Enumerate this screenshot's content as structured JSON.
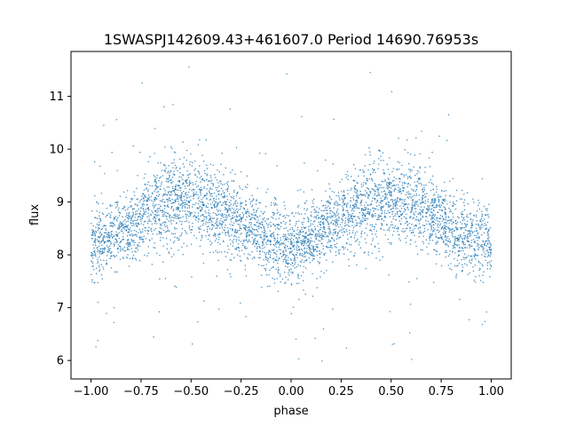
{
  "chart_data": {
    "type": "scatter",
    "title": "1SWASPJ142609.43+461607.0 Period 14690.76953s",
    "xlabel": "phase",
    "ylabel": "flux",
    "xlim": [
      -1.1,
      1.1
    ],
    "ylim": [
      5.65,
      11.85
    ],
    "x_ticks": [
      -1.0,
      -0.75,
      -0.5,
      -0.25,
      0.0,
      0.25,
      0.5,
      0.75,
      1.0
    ],
    "x_tick_labels": [
      "−1.00",
      "−0.75",
      "−0.50",
      "−0.25",
      "0.00",
      "0.25",
      "0.50",
      "0.75",
      "1.00"
    ],
    "y_ticks": [
      6,
      7,
      8,
      9,
      10,
      11
    ],
    "y_tick_labels": [
      "6",
      "7",
      "8",
      "9",
      "10",
      "11"
    ],
    "grid": false,
    "legend": "none",
    "point_color": "#1f77b4",
    "series": [
      {
        "x": [
          -1.0,
          -0.9,
          -0.8,
          -0.7,
          -0.6,
          -0.5,
          -0.4,
          -0.3,
          -0.2,
          -0.1,
          0.0,
          0.1,
          0.2,
          0.3,
          0.4,
          0.5,
          0.6,
          0.7,
          0.8,
          0.9,
          1.0
        ],
        "y": [
          8.2,
          8.3,
          8.55,
          8.85,
          9.0,
          9.05,
          8.95,
          8.75,
          8.5,
          8.3,
          8.15,
          8.3,
          8.55,
          8.8,
          9.0,
          9.05,
          8.95,
          8.75,
          8.5,
          8.3,
          8.2
        ],
        "spread": [
          0.45,
          0.45,
          0.45,
          0.5,
          0.55,
          0.55,
          0.55,
          0.5,
          0.45,
          0.45,
          0.45,
          0.45,
          0.45,
          0.5,
          0.55,
          0.55,
          0.55,
          0.5,
          0.45,
          0.45,
          0.45
        ]
      }
    ]
  }
}
